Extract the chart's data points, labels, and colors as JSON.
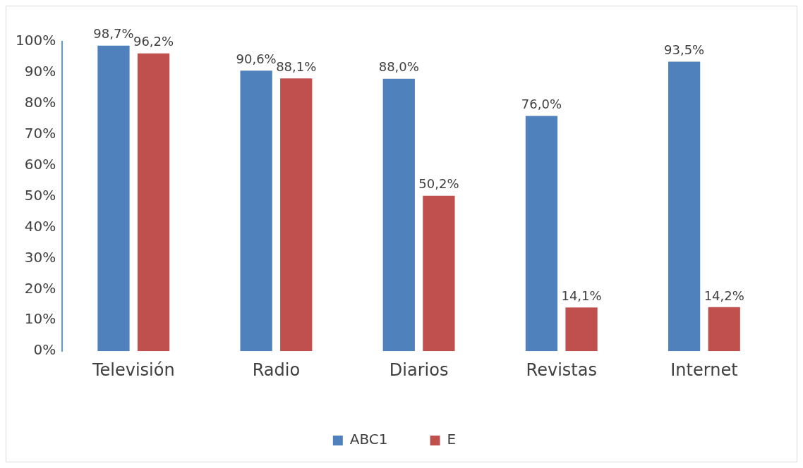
{
  "chart_data": {
    "type": "bar",
    "categories": [
      "Televisión",
      "Radio",
      "Diarios",
      "Revistas",
      "Internet"
    ],
    "series": [
      {
        "name": "ABC1",
        "color": "#4f81bd",
        "values": [
          98.7,
          90.6,
          88.0,
          76.0,
          93.5
        ],
        "value_labels": [
          "98,7%",
          "90,6%",
          "88,0%",
          "76,0%",
          "93,5%"
        ]
      },
      {
        "name": "E",
        "color": "#c0504d",
        "values": [
          96.2,
          88.1,
          50.2,
          14.1,
          14.2
        ],
        "value_labels": [
          "96,2%",
          "88,1%",
          "50,2%",
          "14,1%",
          "14,2%"
        ]
      }
    ],
    "ylim": [
      0,
      100
    ],
    "yticks": [
      {
        "value": 0,
        "label": "0%"
      },
      {
        "value": 10,
        "label": "10%"
      },
      {
        "value": 20,
        "label": "20%"
      },
      {
        "value": 30,
        "label": "30%"
      },
      {
        "value": 40,
        "label": "40%"
      },
      {
        "value": 50,
        "label": "50%"
      },
      {
        "value": 60,
        "label": "60%"
      },
      {
        "value": 70,
        "label": "70%"
      },
      {
        "value": 80,
        "label": "80%"
      },
      {
        "value": 90,
        "label": "90%"
      },
      {
        "value": 100,
        "label": "100%"
      }
    ],
    "grid": false,
    "legend": "bottom"
  }
}
